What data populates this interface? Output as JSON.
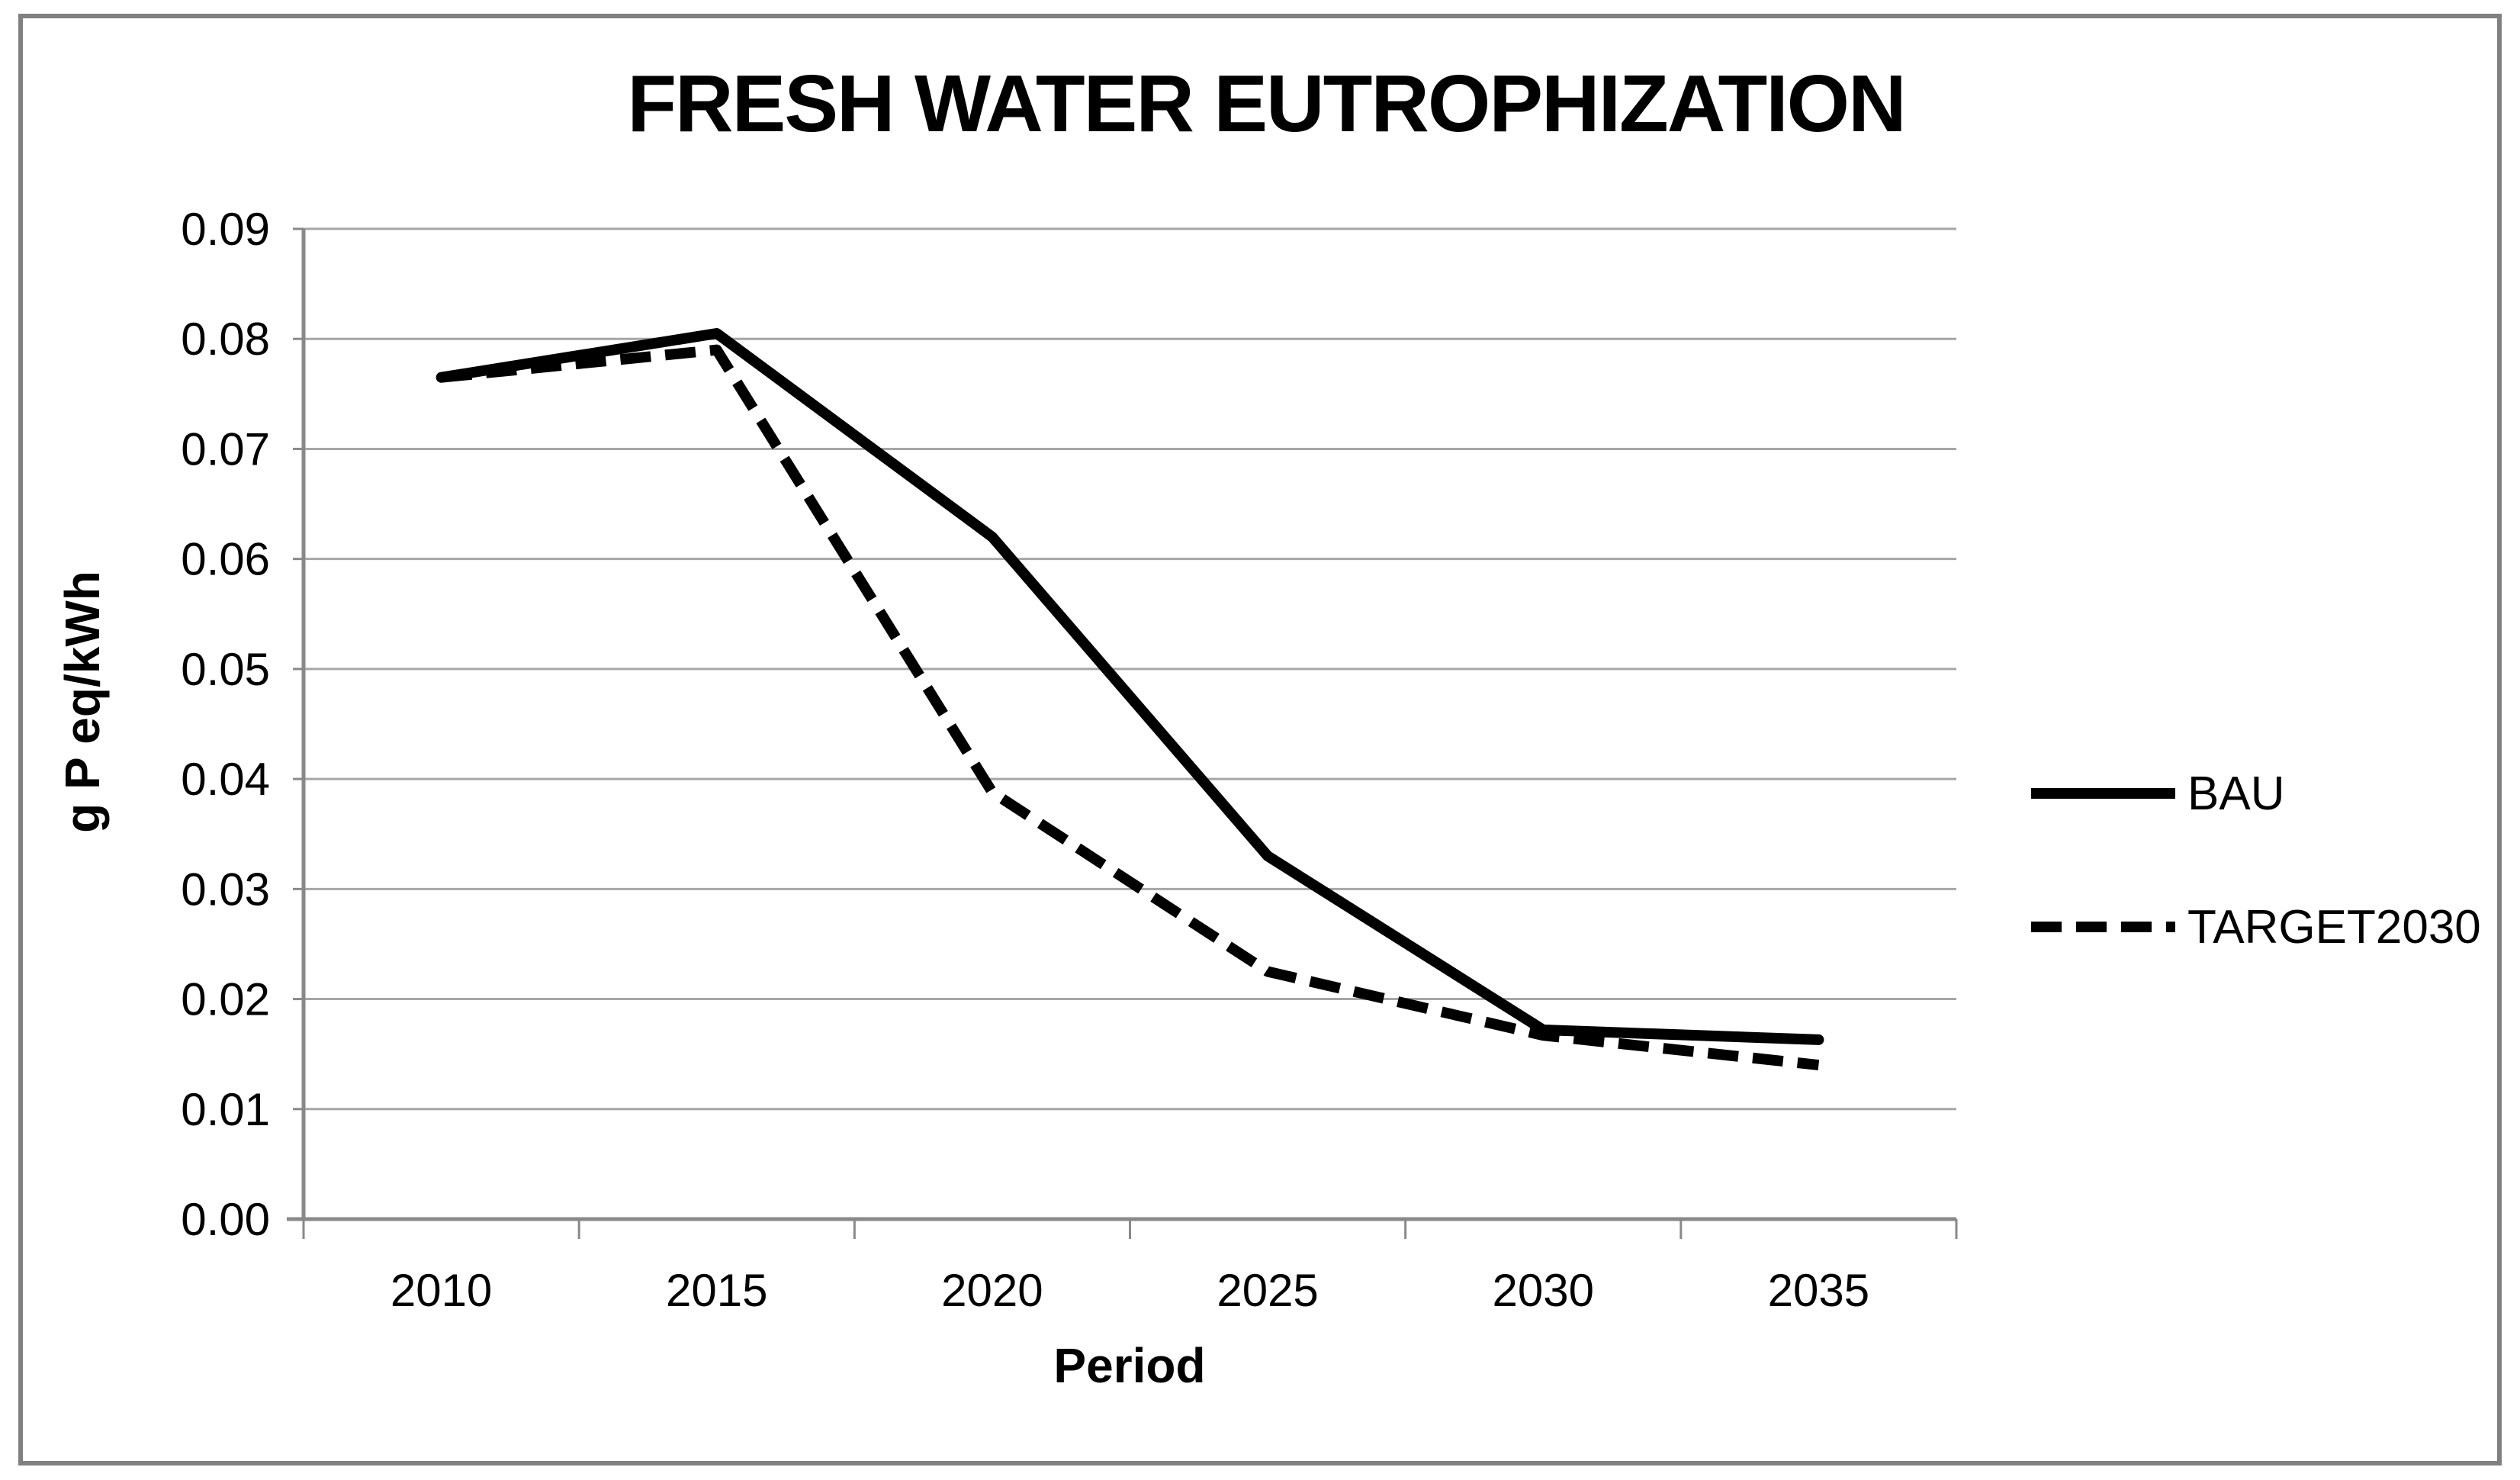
{
  "figure": {
    "background_color": "#ffffff",
    "frame_color": "#808080",
    "gridline_color": "#a6a6a6",
    "axis_color": "#898989",
    "text_color": "#000000"
  },
  "chart_data": {
    "type": "line",
    "title": "FRESH WATER EUTROPHIZATION",
    "xlabel": "Period",
    "ylabel": "g P eq/kWh",
    "categories": [
      "2010",
      "2015",
      "2020",
      "2025",
      "2030",
      "2035"
    ],
    "series": [
      {
        "name": "BAU",
        "line_style": "solid",
        "color": "#000000",
        "values": [
          0.0765,
          0.0805,
          0.062,
          0.033,
          0.0172,
          0.0163
        ]
      },
      {
        "name": "TARGET2030",
        "line_style": "dashed",
        "color": "#000000",
        "values": [
          0.0765,
          0.079,
          0.0388,
          0.0225,
          0.0167,
          0.014
        ]
      }
    ],
    "ylim": [
      0.0,
      0.09
    ],
    "ytick_step": 0.01,
    "ytick_labels": [
      "0.00",
      "0.01",
      "0.02",
      "0.03",
      "0.04",
      "0.05",
      "0.06",
      "0.07",
      "0.08",
      "0.09"
    ],
    "grid": true,
    "legend_position": "right",
    "legend_entries": [
      "BAU",
      "TARGET2030"
    ]
  }
}
